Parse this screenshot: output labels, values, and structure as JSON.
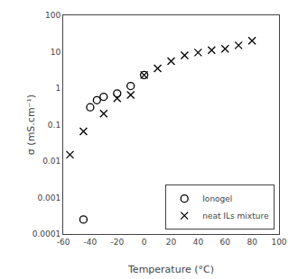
{
  "chart_data": {
    "type": "scatter",
    "xlabel": "Temperature (°C)",
    "ylabel": "σ (mS.cm⁻¹)",
    "series": [
      {
        "name": "Ionogel",
        "color": "black",
        "marker": "open_circle",
        "x": [
          -45,
          -40,
          -35,
          -30,
          -20,
          -10,
          0
        ],
        "values": [
          0.00025,
          0.3,
          0.47,
          0.58,
          0.72,
          1.15,
          2.3
        ]
      },
      {
        "name": "neat ILs mixture",
        "color": "black",
        "marker": "x",
        "x": [
          -55,
          -45,
          -30,
          -20,
          -10,
          0,
          10,
          20,
          30,
          40,
          50,
          60,
          70,
          80
        ],
        "values": [
          0.015,
          0.065,
          0.2,
          0.53,
          0.65,
          2.3,
          3.5,
          5.5,
          8.0,
          9.5,
          11.0,
          12.0,
          15.0,
          20.0
        ]
      }
    ],
    "xlim": [
      -60,
      100
    ],
    "xticks": [
      -60,
      -40,
      -20,
      0,
      20,
      40,
      60,
      80,
      100
    ],
    "ylim": [
      0.0001,
      100
    ],
    "yticks": [
      0.0001,
      0.001,
      0.01,
      0.1,
      1,
      10,
      100
    ],
    "log": "y",
    "grid": false,
    "legend": "lower right"
  }
}
